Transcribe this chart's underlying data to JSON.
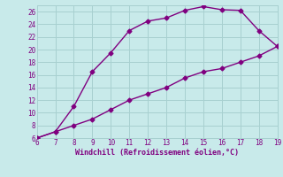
{
  "xlabel": "Windchill (Refroidissement éolien,°C)",
  "x_upper": [
    6,
    7,
    8,
    9,
    10,
    11,
    12,
    13,
    14,
    15,
    16,
    17,
    18,
    19
  ],
  "y_upper": [
    6,
    7,
    11,
    16.5,
    19.5,
    23,
    24.5,
    25,
    26.2,
    26.8,
    26.3,
    26.2,
    23,
    20.5
  ],
  "x_lower": [
    6,
    7,
    8,
    9,
    10,
    11,
    12,
    13,
    14,
    15,
    16,
    17,
    18,
    19
  ],
  "y_lower": [
    6,
    7,
    8,
    9,
    10.5,
    12,
    13,
    14,
    15.5,
    16.5,
    17,
    18,
    19,
    20.5
  ],
  "line_color": "#800080",
  "bg_color": "#c8eaea",
  "grid_color": "#a8d0d0",
  "text_color": "#800080",
  "xlim": [
    6,
    19
  ],
  "ylim": [
    6,
    27
  ],
  "xticks": [
    6,
    7,
    8,
    9,
    10,
    11,
    12,
    13,
    14,
    15,
    16,
    17,
    18,
    19
  ],
  "yticks": [
    6,
    8,
    10,
    12,
    14,
    16,
    18,
    20,
    22,
    24,
    26
  ],
  "marker": "D",
  "markersize": 2.5,
  "linewidth": 1.0
}
